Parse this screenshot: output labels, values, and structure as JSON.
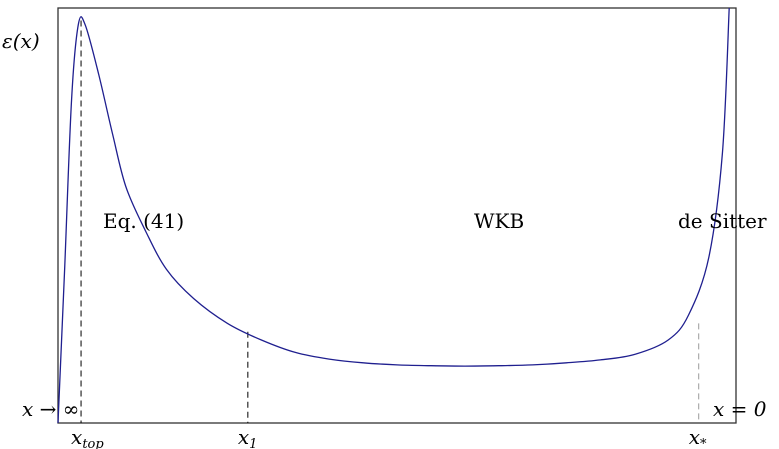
{
  "chart_data": {
    "type": "line",
    "title": "",
    "xlabel": "",
    "ylabel": "ε(x)",
    "line_color": "#1f1f8f",
    "frame_color": "#333333",
    "grid": false,
    "legend": "none",
    "x_range": [
      0,
      1
    ],
    "y_range": [
      0,
      1
    ],
    "series": [
      {
        "points": [
          [
            0,
            0
          ],
          [
            0.01,
            0.38
          ],
          [
            0.02,
            0.78
          ],
          [
            0.03,
            0.96
          ],
          [
            0.04,
            0.96
          ],
          [
            0.06,
            0.84
          ],
          [
            0.08,
            0.7
          ],
          [
            0.1,
            0.57
          ],
          [
            0.13,
            0.46
          ],
          [
            0.16,
            0.37
          ],
          [
            0.2,
            0.3
          ],
          [
            0.25,
            0.24
          ],
          [
            0.3,
            0.2
          ],
          [
            0.35,
            0.17
          ],
          [
            0.4,
            0.154
          ],
          [
            0.45,
            0.145
          ],
          [
            0.5,
            0.14
          ],
          [
            0.55,
            0.138
          ],
          [
            0.6,
            0.137
          ],
          [
            0.65,
            0.138
          ],
          [
            0.7,
            0.14
          ],
          [
            0.75,
            0.145
          ],
          [
            0.8,
            0.152
          ],
          [
            0.85,
            0.165
          ],
          [
            0.9,
            0.2
          ],
          [
            0.93,
            0.26
          ],
          [
            0.96,
            0.4
          ],
          [
            0.98,
            0.65
          ],
          [
            0.99,
            1.0
          ]
        ]
      }
    ],
    "regions": [
      "Eq. (41)",
      "WKB",
      "de Sitter"
    ],
    "x_markers": [
      {
        "label": "x",
        "sub": "top",
        "x": 0.034,
        "y": 0.97,
        "style": "dashed"
      },
      {
        "label": "x",
        "sub": "1",
        "x": 0.28,
        "y": 0.22,
        "style": "dashed"
      },
      {
        "label": "x",
        "sub": "*",
        "x": 0.945,
        "y": 0.24,
        "style": "dashed-light"
      }
    ],
    "limit_labels": {
      "left": "x → ∞",
      "right": "x = 0"
    }
  }
}
